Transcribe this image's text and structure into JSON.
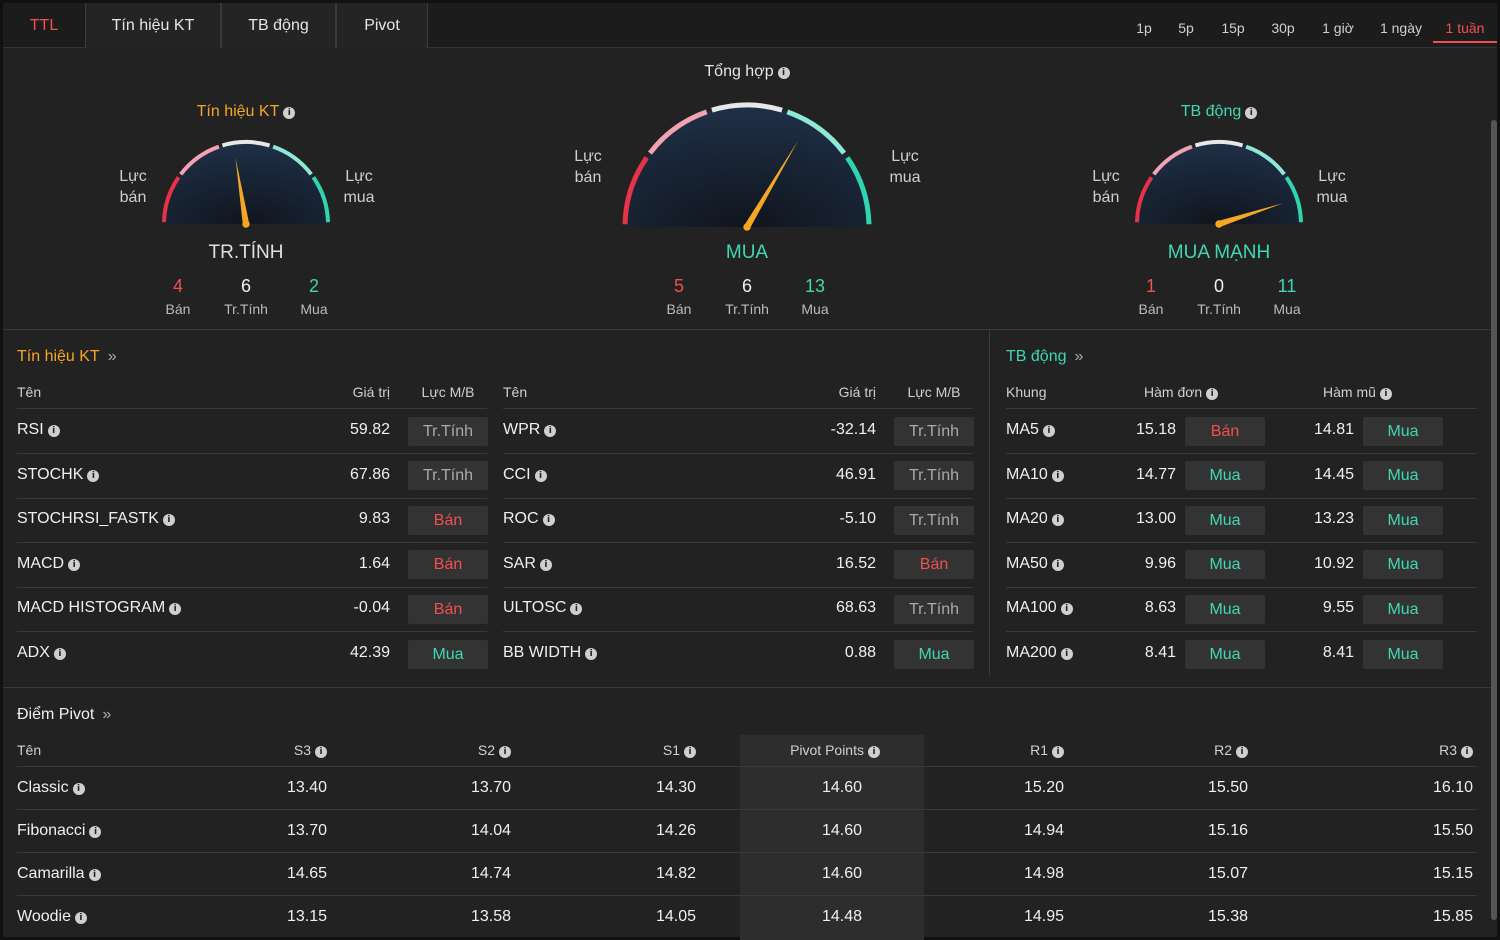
{
  "tabs": [
    {
      "label": "TTL",
      "active": true
    },
    {
      "label": "Tín hiệu KT",
      "active": false
    },
    {
      "label": "TB động",
      "active": false
    },
    {
      "label": "Pivot",
      "active": false
    }
  ],
  "timeframes": [
    {
      "label": "1p",
      "active": false
    },
    {
      "label": "5p",
      "active": false
    },
    {
      "label": "15p",
      "active": false
    },
    {
      "label": "30p",
      "active": false
    },
    {
      "label": "1 giờ",
      "active": false
    },
    {
      "label": "1 ngày",
      "active": false
    },
    {
      "label": "1 tuần",
      "active": true
    }
  ],
  "gauges": {
    "tech": {
      "title": "Tín hiệu KT",
      "title_color": "#f5a623",
      "left": "Lực\nbán",
      "right": "Lực\nmua",
      "verdict": "TR.TÍNH",
      "verdict_color": "#e0e0e0",
      "needle_level": 0.45,
      "sell": "4",
      "sell_label": "Bán",
      "neutral": "6",
      "neutral_label": "Tr.Tính",
      "buy": "2",
      "buy_label": "Mua"
    },
    "summary": {
      "title": "Tổng hợp",
      "title_color": "#f0f0f0",
      "left": "Lực\nbán",
      "right": "Lực\nmua",
      "verdict": "MUA",
      "verdict_color": "#3fd8b4",
      "needle_level": 0.67,
      "sell": "5",
      "sell_label": "Bán",
      "neutral": "6",
      "neutral_label": "Tr.Tính",
      "buy": "13",
      "buy_label": "Mua"
    },
    "ma": {
      "title": "TB động",
      "title_color": "#3fd8b4",
      "left": "Lực\nbán",
      "right": "Lực\nmua",
      "verdict": "MUA MẠNH",
      "verdict_color": "#3fd8b4",
      "needle_level": 0.9,
      "sell": "1",
      "sell_label": "Bán",
      "neutral": "0",
      "neutral_label": "Tr.Tính",
      "buy": "11",
      "buy_label": "Mua"
    }
  },
  "tech_section": {
    "title": "Tín hiệu KT",
    "col_name": "Tên",
    "col_value": "Giá trị",
    "col_signal": "Lực M/B",
    "left_rows": [
      {
        "name": "RSI",
        "value": "59.82",
        "signal": "Tr.Tính",
        "type": "neutral"
      },
      {
        "name": "STOCHK",
        "value": "67.86",
        "signal": "Tr.Tính",
        "type": "neutral"
      },
      {
        "name": "STOCHRSI_FASTK",
        "value": "9.83",
        "signal": "Bán",
        "type": "sell"
      },
      {
        "name": "MACD",
        "value": "1.64",
        "signal": "Bán",
        "type": "sell"
      },
      {
        "name": "MACD HISTOGRAM",
        "value": "-0.04",
        "signal": "Bán",
        "type": "sell"
      },
      {
        "name": "ADX",
        "value": "42.39",
        "signal": "Mua",
        "type": "buy"
      }
    ],
    "right_rows": [
      {
        "name": "WPR",
        "value": "-32.14",
        "signal": "Tr.Tính",
        "type": "neutral"
      },
      {
        "name": "CCI",
        "value": "46.91",
        "signal": "Tr.Tính",
        "type": "neutral"
      },
      {
        "name": "ROC",
        "value": "-5.10",
        "signal": "Tr.Tính",
        "type": "neutral"
      },
      {
        "name": "SAR",
        "value": "16.52",
        "signal": "Bán",
        "type": "sell"
      },
      {
        "name": "ULTOSC",
        "value": "68.63",
        "signal": "Tr.Tính",
        "type": "neutral"
      },
      {
        "name": "BB WIDTH",
        "value": "0.88",
        "signal": "Mua",
        "type": "buy"
      }
    ]
  },
  "ma_section": {
    "title": "TB động",
    "col_frame": "Khung",
    "col_simple": "Hàm đơn",
    "col_exp": "Hàm mũ",
    "rows": [
      {
        "name": "MA5",
        "simple": "15.18",
        "simple_signal": "Bán",
        "simple_type": "sell",
        "exp": "14.81",
        "exp_signal": "Mua",
        "exp_type": "buy"
      },
      {
        "name": "MA10",
        "simple": "14.77",
        "simple_signal": "Mua",
        "simple_type": "buy",
        "exp": "14.45",
        "exp_signal": "Mua",
        "exp_type": "buy"
      },
      {
        "name": "MA20",
        "simple": "13.00",
        "simple_signal": "Mua",
        "simple_type": "buy",
        "exp": "13.23",
        "exp_signal": "Mua",
        "exp_type": "buy"
      },
      {
        "name": "MA50",
        "simple": "9.96",
        "simple_signal": "Mua",
        "simple_type": "buy",
        "exp": "10.92",
        "exp_signal": "Mua",
        "exp_type": "buy"
      },
      {
        "name": "MA100",
        "simple": "8.63",
        "simple_signal": "Mua",
        "simple_type": "buy",
        "exp": "9.55",
        "exp_signal": "Mua",
        "exp_type": "buy"
      },
      {
        "name": "MA200",
        "simple": "8.41",
        "simple_signal": "Mua",
        "simple_type": "buy",
        "exp": "8.41",
        "exp_signal": "Mua",
        "exp_type": "buy"
      }
    ]
  },
  "pivot_section": {
    "title": "Điểm Pivot",
    "col_name": "Tên",
    "columns": [
      "S3",
      "S2",
      "S1",
      "Pivot Points",
      "R1",
      "R2",
      "R3"
    ],
    "rows": [
      {
        "name": "Classic",
        "values": [
          "13.40",
          "13.70",
          "14.30",
          "14.60",
          "15.20",
          "15.50",
          "16.10"
        ]
      },
      {
        "name": "Fibonacci",
        "values": [
          "13.70",
          "14.04",
          "14.26",
          "14.60",
          "14.94",
          "15.16",
          "15.50"
        ]
      },
      {
        "name": "Camarilla",
        "values": [
          "14.65",
          "14.74",
          "14.82",
          "14.60",
          "14.98",
          "15.07",
          "15.15"
        ]
      },
      {
        "name": "Woodie",
        "values": [
          "13.15",
          "13.58",
          "14.05",
          "14.48",
          "14.95",
          "15.38",
          "15.85"
        ]
      }
    ]
  },
  "colors": {
    "sell": "#f05050",
    "buy": "#3fd8b4",
    "neutral": "#aaaaaa",
    "accent": "#f05050"
  }
}
